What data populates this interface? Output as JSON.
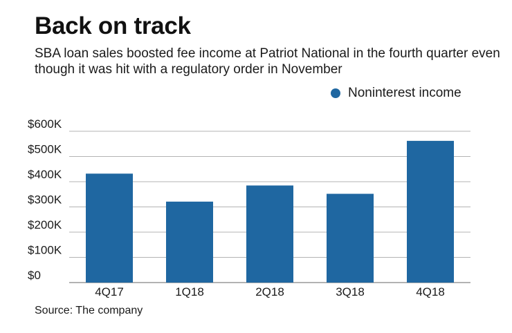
{
  "header": {
    "title": "Back on track",
    "subtitle": "SBA loan sales boosted fee income at Patriot National in the fourth quarter even though it was hit with a regulatory order in November"
  },
  "footer": {
    "source": "Source: The company"
  },
  "colors": {
    "bar": "#1f67a1",
    "grid": "#b3b3b3",
    "axis": "#666666"
  },
  "chart_data": {
    "type": "bar",
    "title": "Back on track",
    "subtitle": "SBA loan sales boosted fee income at Patriot National in the fourth quarter even though it was hit with a regulatory order in November",
    "categories": [
      "4Q17",
      "1Q18",
      "2Q18",
      "3Q18",
      "4Q18"
    ],
    "series": [
      {
        "name": "Noninterest income",
        "values": [
          432000,
          321000,
          385000,
          352000,
          562000
        ]
      }
    ],
    "y_ticks": [
      0,
      100000,
      200000,
      300000,
      400000,
      500000,
      600000
    ],
    "y_tick_labels": [
      "$0",
      "$100K",
      "$200K",
      "$300K",
      "$400K",
      "$500K",
      "$600K"
    ],
    "ylim": [
      0,
      600000
    ],
    "xlabel": "",
    "ylabel": "",
    "grid": true,
    "legend_position": "top-right"
  }
}
